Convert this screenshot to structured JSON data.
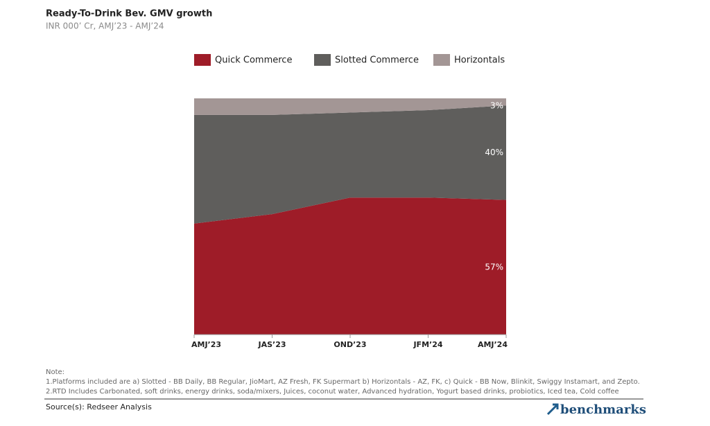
{
  "chart_data": {
    "type": "area",
    "stacked": true,
    "title": "Ready-To-Drink Bev. GMV growth",
    "subtitle": "INR 000’ Cr, AMJ’23 -  AMJ’24",
    "categories": [
      "AMJ’23",
      "JAS’23",
      "OND’23",
      "JFM’24",
      "AMJ’24"
    ],
    "series": [
      {
        "name": "Quick Commerce",
        "color": "#9e1c28",
        "values": [
          47,
          51,
          58,
          58,
          57
        ],
        "value_labels": [
          null,
          null,
          null,
          null,
          "57%"
        ]
      },
      {
        "name": "Slotted Commerce",
        "color": "#5f5e5c",
        "values": [
          46,
          42,
          36,
          37,
          40
        ],
        "value_labels": [
          null,
          null,
          null,
          null,
          "40%"
        ]
      },
      {
        "name": "Horizontals",
        "color": "#a39695",
        "values": [
          7,
          7,
          6,
          5,
          3
        ],
        "value_labels": [
          null,
          null,
          null,
          null,
          "3%"
        ]
      }
    ],
    "ylim": [
      0,
      100
    ],
    "note_title": "Note:",
    "notes": [
      "1.Platforms included are a) Slotted - BB Daily, BB Regular, JioMart, AZ Fresh, FK Supermart b) Horizontals - AZ, FK, c) Quick - BB Now, Blinkit, Swiggy Instamart, and Zepto.",
      "2.RTD Includes Carbonated, soft drinks, energy drinks, soda/mixers, Juices, coconut water, Advanced hydration, Yogurt based drinks, probiotics, Iced tea, Cold coffee"
    ],
    "source": "Source(s): Redseer Analysis",
    "brand": "benchmarks"
  }
}
